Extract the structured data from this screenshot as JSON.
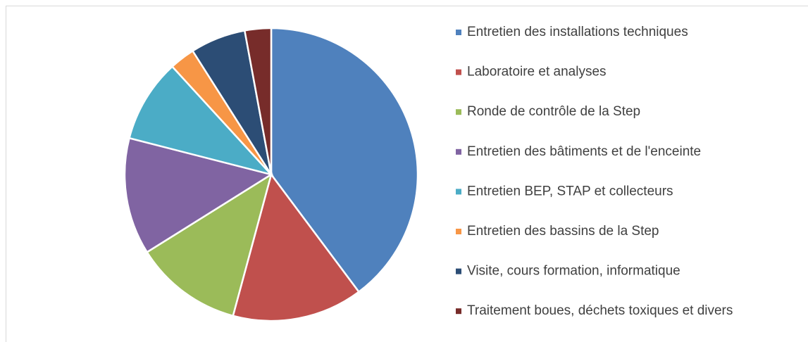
{
  "chart_data": {
    "type": "pie",
    "categories": [
      "Entretien des installations techniques",
      "Laboratoire et analyses",
      "Ronde de contrôle de la Step",
      "Entretien des bâtiments et de l'enceinte",
      "Entretien BEP, STAP et collecteurs",
      "Entretien des bassins de la Step",
      "Visite, cours formation, informatique",
      "Traitement boues, déchets toxiques et divers"
    ],
    "values": [
      39.8,
      14.4,
      11.9,
      12.9,
      9.2,
      2.8,
      6.1,
      2.9
    ],
    "colors": [
      "#4f81bd",
      "#c0504d",
      "#9bbb59",
      "#8064a2",
      "#4bacc6",
      "#f79646",
      "#2c4d75",
      "#772c2a"
    ],
    "legend": "right"
  }
}
